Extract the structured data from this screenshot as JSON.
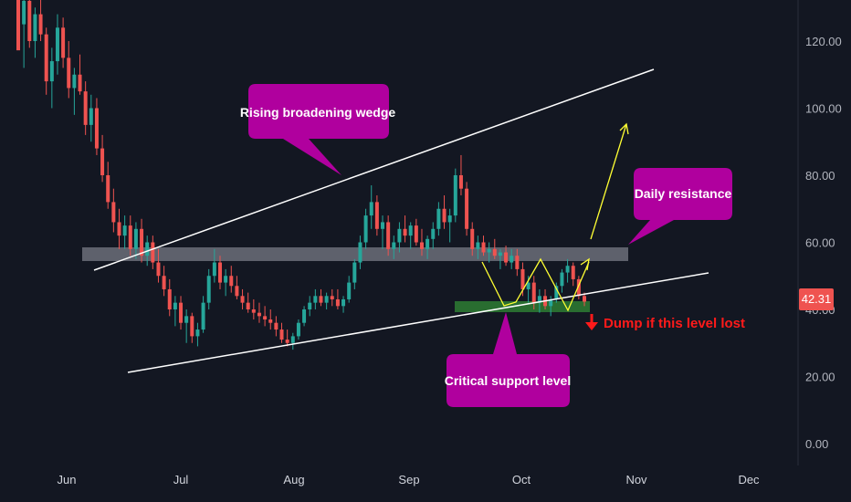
{
  "chart_data": {
    "type": "candlestick",
    "x_axis_labels": [
      "Jun",
      "Jul",
      "Aug",
      "Sep",
      "Oct",
      "Nov",
      "Dec"
    ],
    "y_axis_labels": [
      "0.00",
      "20.00",
      "40.00",
      "60.00",
      "80.00",
      "100.00",
      "120.00"
    ],
    "ylim": [
      0,
      130
    ],
    "last_price": "42.31",
    "grid": false,
    "colors": {
      "up": "#26a69a",
      "down": "#ef5350",
      "background": "#131722",
      "callout": "#b0009e",
      "support_zone": "#2e7d32",
      "resistance_band": "#787b86",
      "projection": "#ffff33",
      "warning": "#ff1a1a"
    },
    "series": [
      {
        "ohlc": [
          [
            1,
            140,
            142,
            118,
            125
          ],
          [
            2,
            125,
            138,
            112,
            132
          ],
          [
            3,
            132,
            134,
            118,
            120
          ],
          [
            4,
            120,
            130,
            115,
            128
          ],
          [
            5,
            128,
            136,
            120,
            122
          ],
          [
            6,
            122,
            124,
            104,
            108
          ],
          [
            7,
            108,
            118,
            100,
            114
          ],
          [
            8,
            114,
            128,
            110,
            124
          ],
          [
            9,
            124,
            127,
            112,
            115
          ],
          [
            10,
            115,
            120,
            103,
            106
          ],
          [
            11,
            106,
            112,
            98,
            110
          ],
          [
            12,
            110,
            116,
            104,
            105
          ],
          [
            13,
            105,
            108,
            92,
            95
          ],
          [
            14,
            95,
            104,
            90,
            100
          ],
          [
            15,
            100,
            103,
            86,
            88
          ],
          [
            16,
            88,
            92,
            78,
            80
          ],
          [
            17,
            80,
            84,
            70,
            72
          ],
          [
            18,
            72,
            76,
            63,
            66
          ],
          [
            19,
            66,
            70,
            58,
            62
          ],
          [
            20,
            62,
            68,
            58,
            65
          ],
          [
            21,
            65,
            68,
            56,
            58
          ],
          [
            22,
            58,
            66,
            55,
            64
          ],
          [
            23,
            64,
            67,
            54,
            56
          ],
          [
            24,
            56,
            62,
            53,
            60
          ],
          [
            25,
            60,
            62,
            52,
            54
          ],
          [
            26,
            54,
            58,
            48,
            50
          ],
          [
            27,
            50,
            53,
            44,
            46
          ],
          [
            28,
            46,
            49,
            38,
            40
          ],
          [
            29,
            40,
            44,
            35,
            42
          ],
          [
            30,
            42,
            44,
            34,
            36
          ],
          [
            31,
            36,
            40,
            30,
            38
          ],
          [
            32,
            38,
            39,
            30,
            32
          ],
          [
            33,
            32,
            36,
            29,
            34
          ],
          [
            34,
            34,
            44,
            33,
            42
          ],
          [
            35,
            42,
            52,
            40,
            50
          ],
          [
            36,
            50,
            58,
            48,
            54
          ],
          [
            37,
            54,
            56,
            46,
            48
          ],
          [
            38,
            48,
            52,
            44,
            50
          ],
          [
            39,
            50,
            53,
            45,
            47
          ],
          [
            40,
            47,
            50,
            43,
            44
          ],
          [
            41,
            44,
            46,
            40,
            42
          ],
          [
            42,
            42,
            45,
            39,
            40
          ],
          [
            43,
            40,
            43,
            37,
            39
          ],
          [
            44,
            39,
            42,
            36,
            38
          ],
          [
            45,
            38,
            41,
            35,
            37
          ],
          [
            46,
            37,
            40,
            34,
            36
          ],
          [
            47,
            36,
            38,
            32,
            34
          ],
          [
            48,
            34,
            36,
            30,
            31
          ],
          [
            49,
            31,
            34,
            29,
            30
          ],
          [
            50,
            30,
            33,
            28,
            32
          ],
          [
            51,
            32,
            37,
            31,
            36
          ],
          [
            52,
            36,
            41,
            35,
            40
          ],
          [
            53,
            40,
            44,
            38,
            42
          ],
          [
            54,
            42,
            46,
            40,
            44
          ],
          [
            55,
            44,
            46,
            41,
            42
          ],
          [
            56,
            42,
            45,
            40,
            44
          ],
          [
            57,
            44,
            46,
            41,
            43
          ],
          [
            58,
            43,
            46,
            40,
            41
          ],
          [
            59,
            41,
            44,
            39,
            43
          ],
          [
            60,
            43,
            50,
            42,
            48
          ],
          [
            61,
            48,
            55,
            46,
            54
          ],
          [
            62,
            54,
            62,
            52,
            60
          ],
          [
            63,
            60,
            70,
            58,
            68
          ],
          [
            64,
            68,
            77,
            64,
            72
          ],
          [
            65,
            72,
            74,
            62,
            64
          ],
          [
            66,
            64,
            68,
            58,
            66
          ],
          [
            67,
            66,
            68,
            56,
            58
          ],
          [
            68,
            58,
            62,
            55,
            60
          ],
          [
            69,
            60,
            66,
            57,
            64
          ],
          [
            70,
            64,
            68,
            60,
            62
          ],
          [
            71,
            62,
            66,
            58,
            65
          ],
          [
            72,
            65,
            67,
            59,
            60
          ],
          [
            73,
            60,
            64,
            56,
            58
          ],
          [
            74,
            58,
            62,
            55,
            61
          ],
          [
            75,
            61,
            66,
            58,
            64
          ],
          [
            76,
            64,
            72,
            62,
            70
          ],
          [
            77,
            70,
            74,
            64,
            66
          ],
          [
            78,
            66,
            70,
            60,
            68
          ],
          [
            79,
            68,
            82,
            66,
            80
          ],
          [
            80,
            80,
            86,
            74,
            76
          ],
          [
            81,
            76,
            78,
            62,
            64
          ],
          [
            82,
            64,
            66,
            56,
            58
          ],
          [
            83,
            58,
            62,
            55,
            60
          ],
          [
            84,
            60,
            62,
            56,
            57
          ],
          [
            85,
            57,
            60,
            54,
            58
          ],
          [
            86,
            58,
            61,
            55,
            56
          ],
          [
            87,
            56,
            58,
            52,
            57
          ],
          [
            88,
            57,
            59,
            53,
            54
          ],
          [
            89,
            54,
            58,
            52,
            56
          ],
          [
            90,
            56,
            58,
            50,
            52
          ],
          [
            91,
            52,
            54,
            44,
            46
          ],
          [
            92,
            46,
            50,
            42,
            48
          ],
          [
            93,
            48,
            50,
            40,
            42
          ],
          [
            94,
            42,
            46,
            39,
            44
          ],
          [
            95,
            44,
            46,
            40,
            41
          ],
          [
            96,
            41,
            44,
            38,
            43
          ],
          [
            97,
            43,
            48,
            42,
            47
          ],
          [
            98,
            47,
            52,
            45,
            51
          ],
          [
            99,
            51,
            55,
            48,
            53
          ],
          [
            100,
            53,
            54,
            47,
            49
          ],
          [
            101,
            49,
            50,
            43,
            44
          ],
          [
            102,
            44,
            45,
            41,
            42.31
          ]
        ]
      }
    ]
  },
  "annotations": {
    "wedge_label": "Rising broadening wedge",
    "resistance_label": "Daily resistance",
    "support_label": "Critical support level",
    "warning_label": "Dump if this level lost"
  }
}
